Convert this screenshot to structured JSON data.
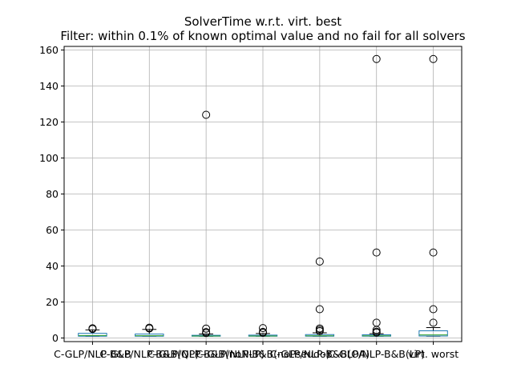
{
  "chart_data": {
    "type": "box",
    "title": "SolverTime w.r.t. virt. best",
    "subtitle": "Filter: within 0.1% of known optimal value and no fail for all solvers",
    "xlabel": "",
    "ylabel": "",
    "ylim": [
      -2,
      162
    ],
    "yticks": [
      0,
      20,
      40,
      60,
      80,
      100,
      120,
      140,
      160
    ],
    "grid": true,
    "categories": [
      "C-GLP/NLP-B&B",
      "C-GLP/NLP-B&B(QP)",
      "C-GLP/NLP-B&B(noNLP)",
      "C-GLP/NLP-B&B(noPseudo)",
      "C-GLP/NLP-B&B(OA)",
      "C-GLP/NLP-B&B(LP)",
      "virt. worst"
    ],
    "category_labels_visible": [
      "C-GLP/NLP-B&B",
      "C-GLP/NLP-B&B(QP)",
      "C-GLP/NLP-B&B(noNLP)",
      "C-GLP/NLP-B&B(noPseudo)",
      "C-GLP/NLP-B&B(OA)",
      "C-GLP/NLP-B&B(LP)",
      "virt. worst"
    ],
    "boxes": [
      {
        "whislo": 1.0,
        "q1": 1.0,
        "med": 1.4,
        "q3": 2.6,
        "whishi": 4.5,
        "fliers": [
          5.0,
          5.4
        ]
      },
      {
        "whislo": 1.0,
        "q1": 1.0,
        "med": 1.3,
        "q3": 2.2,
        "whishi": 4.8,
        "fliers": [
          5.3,
          5.7
        ]
      },
      {
        "whislo": 1.0,
        "q1": 1.0,
        "med": 1.1,
        "q3": 1.5,
        "whishi": 2.2,
        "fliers": [
          2.8,
          3.3,
          5.2,
          124.0
        ]
      },
      {
        "whislo": 1.0,
        "q1": 1.0,
        "med": 1.1,
        "q3": 1.6,
        "whishi": 2.5,
        "fliers": [
          2.9,
          3.4,
          5.5
        ]
      },
      {
        "whislo": 1.0,
        "q1": 1.0,
        "med": 1.2,
        "q3": 1.9,
        "whishi": 2.9,
        "fliers": [
          3.8,
          4.5,
          5.3,
          16.0,
          42.5
        ]
      },
      {
        "whislo": 1.0,
        "q1": 1.0,
        "med": 1.2,
        "q3": 1.8,
        "whishi": 2.4,
        "fliers": [
          3.0,
          3.5,
          4.5,
          8.5,
          47.5,
          155.0
        ]
      },
      {
        "whislo": 1.0,
        "q1": 1.1,
        "med": 1.7,
        "q3": 4.0,
        "whishi": 5.8,
        "fliers": [
          8.5,
          16.0,
          47.5,
          155.0
        ]
      }
    ]
  }
}
